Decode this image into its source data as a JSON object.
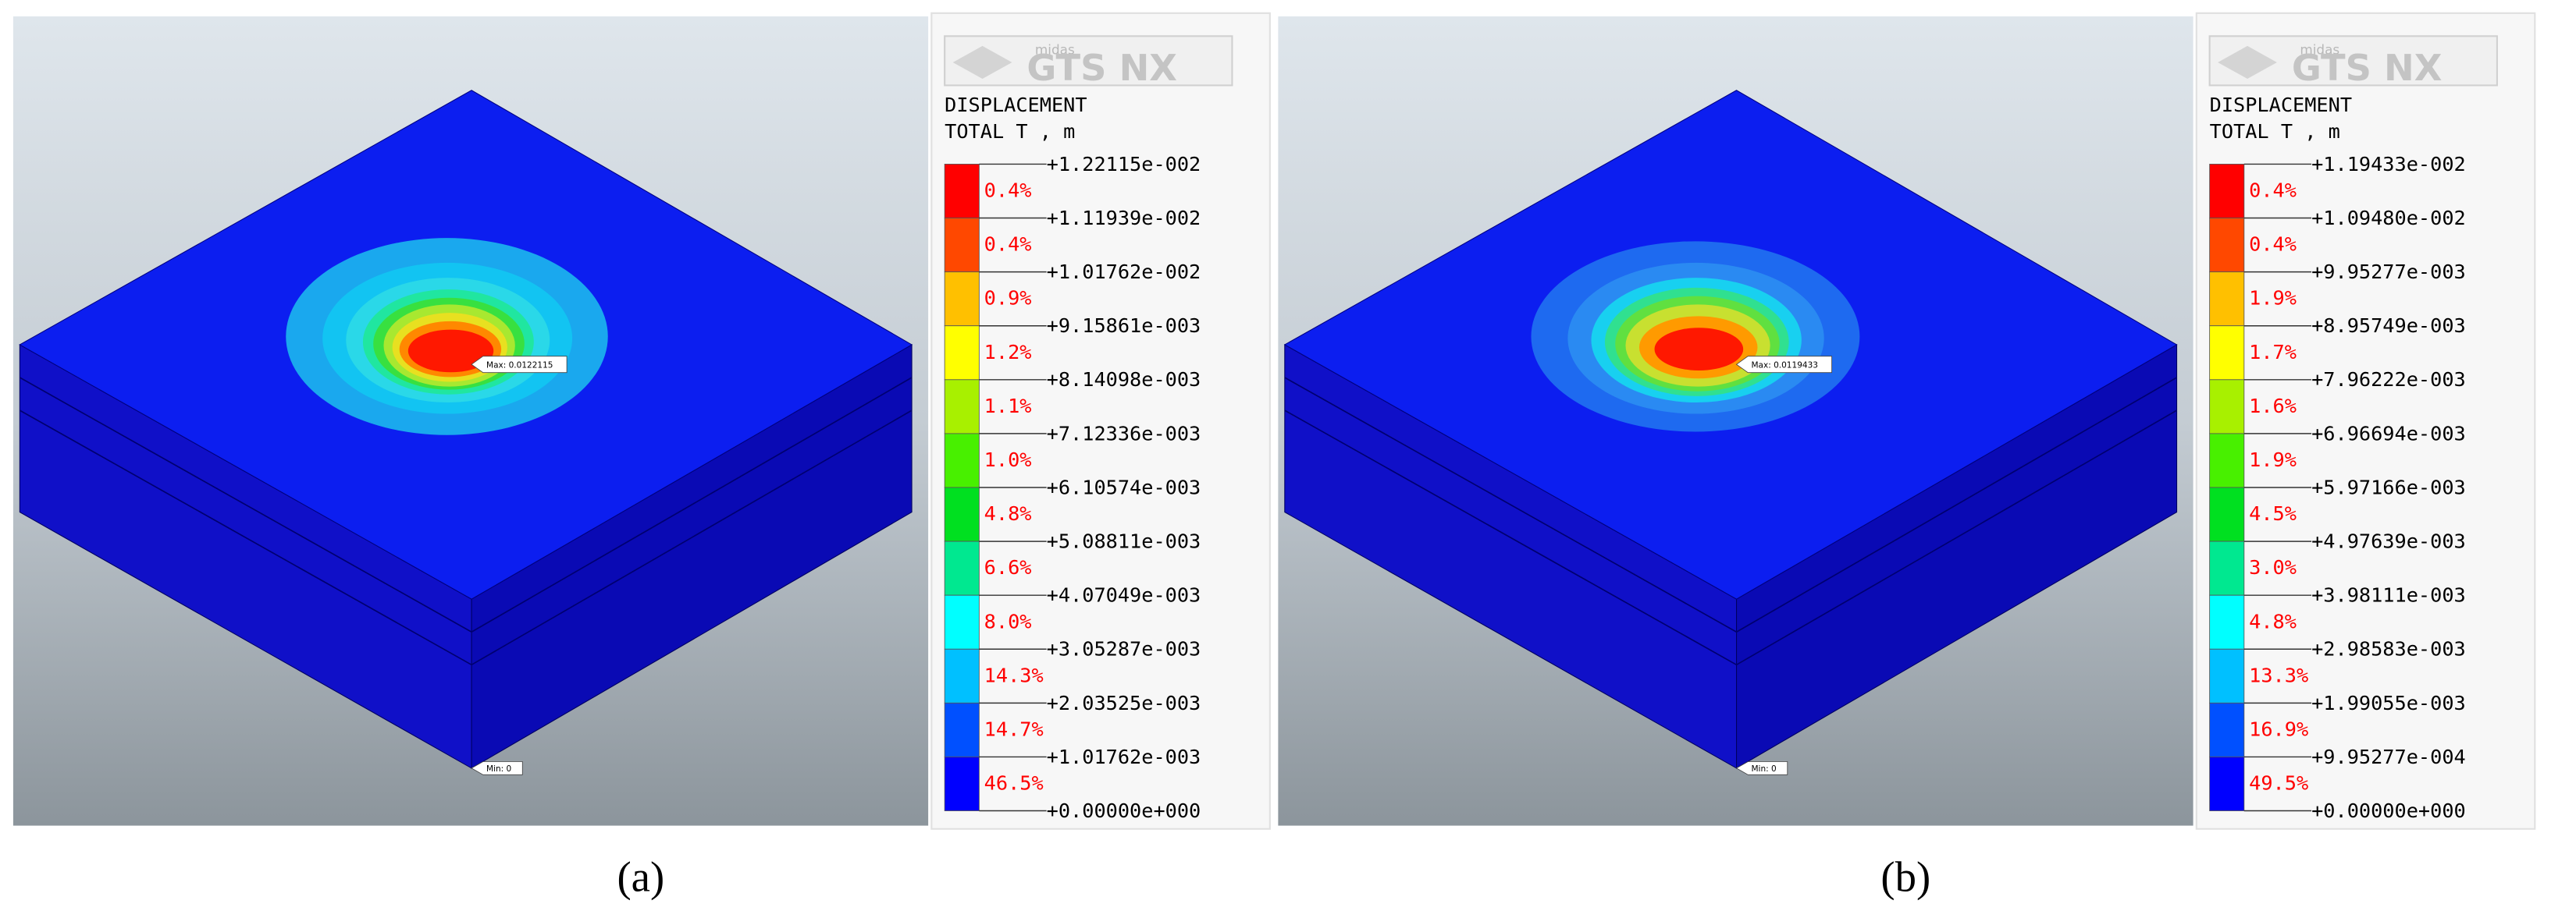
{
  "panels": [
    {
      "caption": "(a)",
      "logo": {
        "small": "midas",
        "big": "GTS NX"
      },
      "legend_title": "DISPLACEMENT",
      "legend_subtitle": "TOTAL T , m",
      "levels": [
        "+1.22115e-002",
        "+1.11939e-002",
        "+1.01762e-002",
        "+9.15861e-003",
        "+8.14098e-003",
        "+7.12336e-003",
        "+6.10574e-003",
        "+5.08811e-003",
        "+4.07049e-003",
        "+3.05287e-003",
        "+2.03525e-003",
        "+1.01762e-003",
        "+0.00000e+000"
      ],
      "percents": [
        "0.4%",
        "0.4%",
        "0.9%",
        "1.2%",
        "1.1%",
        "1.0%",
        "4.8%",
        "6.6%",
        "8.0%",
        "14.3%",
        "14.7%",
        "46.5%"
      ],
      "max_label": "Max: 0.0122115",
      "min_label": "Min: 0"
    },
    {
      "caption": "(b)",
      "logo": {
        "small": "midas",
        "big": "GTS NX"
      },
      "legend_title": "DISPLACEMENT",
      "legend_subtitle": "TOTAL T , m",
      "levels": [
        "+1.19433e-002",
        "+1.09480e-002",
        "+9.95277e-003",
        "+8.95749e-003",
        "+7.96222e-003",
        "+6.96694e-003",
        "+5.97166e-003",
        "+4.97639e-003",
        "+3.98111e-003",
        "+2.98583e-003",
        "+1.99055e-003",
        "+9.95277e-004",
        "+0.00000e+000"
      ],
      "percents": [
        "0.4%",
        "0.4%",
        "1.9%",
        "1.7%",
        "1.6%",
        "1.9%",
        "4.5%",
        "3.0%",
        "4.8%",
        "13.3%",
        "16.9%",
        "49.5%"
      ],
      "max_label": "Max: 0.0119433",
      "min_label": "Min: 0"
    }
  ],
  "colors": [
    "#ff0000",
    "#ff4800",
    "#ffc000",
    "#ffff00",
    "#a8f000",
    "#48f000",
    "#00e020",
    "#00e890",
    "#00ffff",
    "#00c0ff",
    "#0050ff",
    "#0000ff"
  ]
}
